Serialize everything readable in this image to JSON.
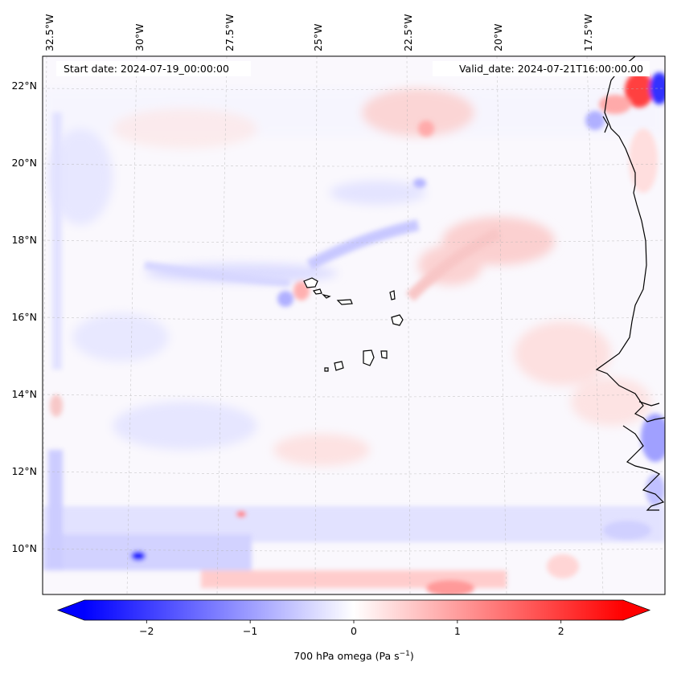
{
  "map": {
    "start_date": "Start date: 2024-07-19_00:00:00",
    "valid_date": "Valid_date: 2024-07-21T16:00:00.00",
    "lon_labels": [
      "32.5°W",
      "30°W",
      "27.5°W",
      "25°W",
      "22.5°W",
      "20°W",
      "17.5°W"
    ],
    "lat_labels": [
      "22°N",
      "20°N",
      "18°N",
      "16°N",
      "14°N",
      "12°N",
      "10°N"
    ]
  },
  "colorbar": {
    "label_text": "700 hPa omega (Pa s",
    "label_sup": "−1",
    "label_close": ")",
    "ticks": [
      "−2",
      "−1",
      "0",
      "1",
      "2"
    ],
    "tick_values": [
      -2,
      -1,
      0,
      1,
      2
    ],
    "range": [
      -2.6,
      2.6
    ],
    "colormap": "bwr"
  },
  "colors": {
    "negative": "#0000ff",
    "zero": "#ffffff",
    "positive": "#ff0000",
    "coastline": "#000000"
  }
}
